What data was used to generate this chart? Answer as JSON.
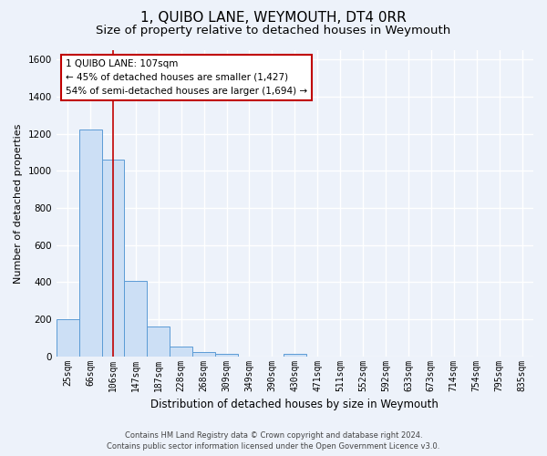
{
  "title": "1, QUIBO LANE, WEYMOUTH, DT4 0RR",
  "subtitle": "Size of property relative to detached houses in Weymouth",
  "xlabel": "Distribution of detached houses by size in Weymouth",
  "ylabel": "Number of detached properties",
  "footer_line1": "Contains HM Land Registry data © Crown copyright and database right 2024.",
  "footer_line2": "Contains public sector information licensed under the Open Government Licence v3.0.",
  "bin_labels": [
    "25sqm",
    "66sqm",
    "106sqm",
    "147sqm",
    "187sqm",
    "228sqm",
    "268sqm",
    "309sqm",
    "349sqm",
    "390sqm",
    "430sqm",
    "471sqm",
    "511sqm",
    "552sqm",
    "592sqm",
    "633sqm",
    "673sqm",
    "714sqm",
    "754sqm",
    "795sqm",
    "835sqm"
  ],
  "bar_heights": [
    200,
    1220,
    1060,
    405,
    162,
    50,
    22,
    14,
    0,
    0,
    14,
    0,
    0,
    0,
    0,
    0,
    0,
    0,
    0,
    0,
    0
  ],
  "bar_color": "#ccdff5",
  "bar_edge_color": "#5b9bd5",
  "property_line_x": 2.0,
  "property_line_color": "#c00000",
  "annotation_line1": "1 QUIBO LANE: 107sqm",
  "annotation_line2": "← 45% of detached houses are smaller (1,427)",
  "annotation_line3": "54% of semi-detached houses are larger (1,694) →",
  "annotation_box_color": "#c00000",
  "ylim": [
    0,
    1650
  ],
  "yticks": [
    0,
    200,
    400,
    600,
    800,
    1000,
    1200,
    1400,
    1600
  ],
  "background_color": "#edf2fa",
  "plot_bg_color": "#edf2fa",
  "grid_color": "#ffffff",
  "title_fontsize": 11,
  "subtitle_fontsize": 9.5,
  "ylabel_fontsize": 8,
  "xlabel_fontsize": 8.5,
  "tick_fontsize": 7,
  "annotation_fontsize": 7.5,
  "footer_fontsize": 6
}
